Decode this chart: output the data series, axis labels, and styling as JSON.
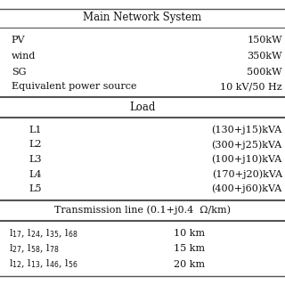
{
  "title": "Main Network System",
  "section1_rows": [
    [
      "PV",
      "150kW"
    ],
    [
      "wind",
      "350kW"
    ],
    [
      "SG",
      "500kW"
    ],
    [
      "Equivalent power source",
      "10 kV/50 Hz"
    ]
  ],
  "section2_title": "Load",
  "section2_rows": [
    [
      "L1",
      "(130+j15)kVA"
    ],
    [
      "L2",
      "(300+j25)kVA"
    ],
    [
      "L3",
      "(100+j10)kVA"
    ],
    [
      "L4",
      "(170+j20)kVA"
    ],
    [
      "L5",
      "(400+j60)kVA"
    ]
  ],
  "section3_title": "Transmission line (0.1+j0.4  Ω/km)",
  "section3_rows": [
    [
      "l$_{17}$, l$_{24}$, l$_{35}$, l$_{68}$",
      "10 km"
    ],
    [
      "l$_{27}$, l$_{58}$, l$_{78}$",
      "15 km"
    ],
    [
      "l$_{12}$, l$_{13}$, l$_{46}$, l$_{56}$",
      "20 km"
    ]
  ],
  "bg_color": "#ffffff",
  "text_color": "#111111",
  "line_color": "#555555",
  "title_fs": 8.5,
  "body_fs": 8.0
}
